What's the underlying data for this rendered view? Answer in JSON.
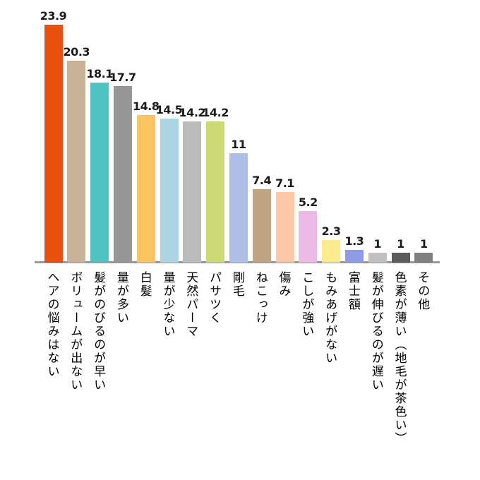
{
  "chart_data": {
    "type": "bar",
    "title": "",
    "xlabel": "",
    "ylabel": "",
    "ylim": [
      0,
      25
    ],
    "grid": false,
    "legend": null,
    "orientation": "vertical",
    "category_label_orientation": "vertical-japanese",
    "axis_line_color": "#999999",
    "value_label_color": "#1a1a1a",
    "categories": [
      "ヘアの悩みはない",
      "ボリュームが出ない",
      "髪がのびるのが早い",
      "量が多い",
      "白髪",
      "量が少ない",
      "天然パーマ",
      "パサツく",
      "剛毛",
      "ねこっけ",
      "傷み",
      "こしが強い",
      "もみあげがない",
      "富士額",
      "髪が伸びるのが遅い",
      "色素が薄い（地毛が茶色い）",
      "その他"
    ],
    "values": [
      23.9,
      20.3,
      18.1,
      17.7,
      14.8,
      14.5,
      14.2,
      14.2,
      11,
      7.4,
      7.1,
      5.2,
      2.3,
      1.3,
      1,
      1,
      1
    ],
    "bar_colors": [
      "#E8520E",
      "#C7B299",
      "#4FC2C2",
      "#969696",
      "#FCC45F",
      "#ACD4E2",
      "#BBBBBB",
      "#CDD975",
      "#AFBEE9",
      "#BFA383",
      "#FCC8A8",
      "#EBB9E3",
      "#FBEA8E",
      "#8E9CE8",
      "#C0C0C0",
      "#5A5A5A",
      "#808080"
    ]
  }
}
